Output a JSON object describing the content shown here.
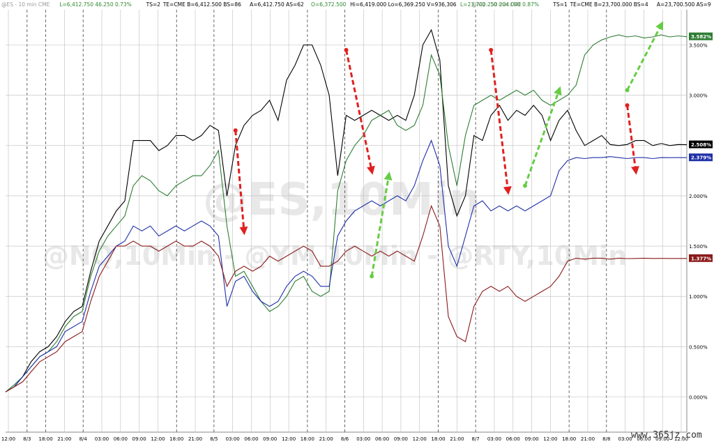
{
  "header": {
    "left": [
      {
        "text": "@ES - 10 min  CME",
        "color": "#9a9a9a"
      },
      {
        "text": "L=6,412.750  46.250  0.73%",
        "color": "#2f8a2f"
      },
      {
        "text": "TS=2",
        "color": "#000000"
      },
      {
        "text": "TE=CME  B=6,412.500  BS=86",
        "color": "#000000"
      },
      {
        "text": "A=6,412.750  AS=62",
        "color": "#000000"
      },
      {
        "text": "O=6,372.500",
        "color": "#2f8a2f"
      },
      {
        "text": "Hi=6,419.000  Lo=6,369.250  V=936,306",
        "color": "#000000"
      },
      {
        "text": "@NQ - 10 min  CME",
        "color": "#9a9a9a"
      }
    ],
    "right": [
      {
        "text": "L=23,700.250  204.000  0.87%",
        "color": "#2f8a2f"
      },
      {
        "text": "TS=1",
        "color": "#000000"
      },
      {
        "text": "TE=CME  B=23,700.000  BS=4",
        "color": "#000000"
      },
      {
        "text": "A=23,700.500  AS=9",
        "color": "#000000"
      },
      {
        "text": "l...",
        "color": "#2f8a2f"
      }
    ]
  },
  "watermark": {
    "line1": "@ES,10Min",
    "line2": "@NQ,10Min - @YM,10Min - @RTY,10Min"
  },
  "site_label": "www.365jz.com",
  "chart_data": {
    "type": "line",
    "title": "",
    "xlabel": "",
    "ylabel": "",
    "ylim": [
      -0.35,
      3.85
    ],
    "yticks": [
      "0.000%",
      "0.500%",
      "1.000%",
      "1.500%",
      "2.000%",
      "2.500%",
      "3.000%",
      "3.500%"
    ],
    "ytick_values": [
      0.0,
      0.5,
      1.0,
      1.5,
      2.0,
      2.5,
      3.0,
      3.5
    ],
    "x_labels": [
      "12:00",
      "8/3",
      "18:00",
      "21:00",
      "8/4",
      "03:00",
      "06:00",
      "09:00",
      "12:00",
      "18:00",
      "21:00",
      "8/5",
      "03:00",
      "06:00",
      "09:00",
      "12:00",
      "18:00",
      "21:00",
      "8/6",
      "03:00",
      "06:00",
      "09:00",
      "12:00",
      "18:00",
      "21:00",
      "8/7",
      "03:00",
      "06:00",
      "09:00",
      "12:00",
      "18:00",
      "21:00",
      "8/8",
      "03:00",
      "06:00",
      "09:00",
      "12:00"
    ],
    "x_count": 81,
    "series": [
      {
        "color": "#000000",
        "last_label": "2.508%",
        "values": [
          0.05,
          0.1,
          0.2,
          0.35,
          0.45,
          0.5,
          0.6,
          0.75,
          0.85,
          0.9,
          1.25,
          1.55,
          1.7,
          1.85,
          1.95,
          2.55,
          2.55,
          2.55,
          2.45,
          2.5,
          2.6,
          2.6,
          2.55,
          2.6,
          2.7,
          2.65,
          2.0,
          2.5,
          2.7,
          2.8,
          2.85,
          2.95,
          2.75,
          3.15,
          3.3,
          3.5,
          3.5,
          3.3,
          3.0,
          2.2,
          2.8,
          2.75,
          2.8,
          2.85,
          2.8,
          2.75,
          2.8,
          2.75,
          3.0,
          3.5,
          3.65,
          3.35,
          2.1,
          1.8,
          2.0,
          2.6,
          2.55,
          2.8,
          2.9,
          2.75,
          2.85,
          2.8,
          2.9,
          2.8,
          2.55,
          2.75,
          2.85,
          2.65,
          2.5,
          2.55,
          2.6,
          2.51,
          2.5,
          2.51,
          2.55,
          2.55,
          2.5,
          2.52,
          2.5,
          2.51,
          2.508
        ]
      },
      {
        "color": "#2e7d32",
        "last_label": "3.582%",
        "values": [
          0.05,
          0.12,
          0.2,
          0.3,
          0.4,
          0.45,
          0.55,
          0.7,
          0.8,
          0.85,
          1.2,
          1.45,
          1.6,
          1.7,
          1.8,
          2.1,
          2.2,
          2.15,
          2.05,
          2.0,
          2.1,
          2.15,
          2.2,
          2.2,
          2.3,
          2.45,
          1.7,
          1.2,
          1.25,
          1.1,
          0.95,
          0.85,
          0.9,
          1.0,
          1.15,
          1.2,
          1.05,
          1.0,
          1.05,
          2.05,
          2.35,
          2.5,
          2.6,
          2.75,
          2.8,
          2.85,
          2.7,
          2.65,
          2.7,
          2.9,
          3.4,
          3.2,
          2.5,
          2.1,
          2.6,
          2.9,
          2.95,
          3.0,
          2.95,
          3.0,
          3.05,
          3.0,
          3.05,
          2.95,
          2.9,
          2.95,
          3.0,
          3.1,
          3.4,
          3.5,
          3.55,
          3.58,
          3.6,
          3.58,
          3.59,
          3.57,
          3.58,
          3.6,
          3.58,
          3.59,
          3.582
        ]
      },
      {
        "color": "#1f2fa8",
        "last_label": "2.379%",
        "values": [
          0.05,
          0.1,
          0.2,
          0.3,
          0.4,
          0.45,
          0.5,
          0.65,
          0.7,
          0.75,
          1.05,
          1.3,
          1.4,
          1.5,
          1.55,
          1.7,
          1.65,
          1.7,
          1.6,
          1.65,
          1.7,
          1.65,
          1.7,
          1.75,
          1.7,
          1.6,
          0.9,
          1.15,
          1.2,
          1.05,
          0.95,
          0.9,
          0.95,
          1.1,
          1.2,
          1.25,
          1.2,
          1.1,
          1.1,
          1.6,
          1.75,
          1.85,
          1.9,
          1.95,
          1.9,
          1.95,
          2.0,
          1.95,
          2.1,
          2.35,
          2.55,
          2.3,
          1.5,
          1.3,
          1.6,
          1.9,
          1.95,
          1.85,
          1.9,
          1.85,
          1.9,
          1.85,
          1.9,
          1.95,
          2.0,
          2.25,
          2.35,
          2.38,
          2.37,
          2.38,
          2.38,
          2.39,
          2.38,
          2.37,
          2.38,
          2.38,
          2.37,
          2.38,
          2.379,
          2.38,
          2.379
        ]
      },
      {
        "color": "#8b1a1a",
        "last_label": "1.377%",
        "values": [
          0.05,
          0.1,
          0.15,
          0.25,
          0.35,
          0.4,
          0.45,
          0.55,
          0.6,
          0.65,
          0.95,
          1.2,
          1.35,
          1.5,
          1.5,
          1.55,
          1.5,
          1.5,
          1.45,
          1.5,
          1.55,
          1.5,
          1.5,
          1.55,
          1.5,
          1.4,
          1.1,
          1.25,
          1.3,
          1.25,
          1.3,
          1.4,
          1.35,
          1.4,
          1.45,
          1.5,
          1.45,
          1.3,
          1.3,
          1.35,
          1.45,
          1.5,
          1.45,
          1.4,
          1.45,
          1.4,
          1.45,
          1.4,
          1.35,
          1.6,
          1.9,
          1.7,
          0.8,
          0.6,
          0.55,
          0.9,
          1.05,
          1.1,
          1.05,
          1.1,
          1.0,
          0.95,
          1.0,
          1.05,
          1.1,
          1.2,
          1.35,
          1.38,
          1.37,
          1.38,
          1.38,
          1.37,
          1.38,
          1.376,
          1.377,
          1.38,
          1.377,
          1.378,
          1.377,
          1.377,
          1.377
        ]
      }
    ],
    "arrows": [
      {
        "color": "#e02020",
        "from": [
          27,
          2.65
        ],
        "to": [
          28,
          1.65
        ]
      },
      {
        "color": "#e02020",
        "from": [
          40,
          3.45
        ],
        "to": [
          43,
          2.25
        ]
      },
      {
        "color": "#66cc44",
        "from": [
          43,
          1.2
        ],
        "to": [
          45,
          2.2
        ]
      },
      {
        "color": "#e02020",
        "from": [
          57,
          3.45
        ],
        "to": [
          59,
          2.05
        ]
      },
      {
        "color": "#66cc44",
        "from": [
          61,
          2.1
        ],
        "to": [
          65,
          3.05
        ]
      },
      {
        "color": "#e02020",
        "from": [
          73,
          2.9
        ],
        "to": [
          74,
          2.25
        ]
      },
      {
        "color": "#66cc44",
        "from": [
          73,
          3.05
        ],
        "to": [
          77,
          3.7
        ]
      }
    ]
  }
}
